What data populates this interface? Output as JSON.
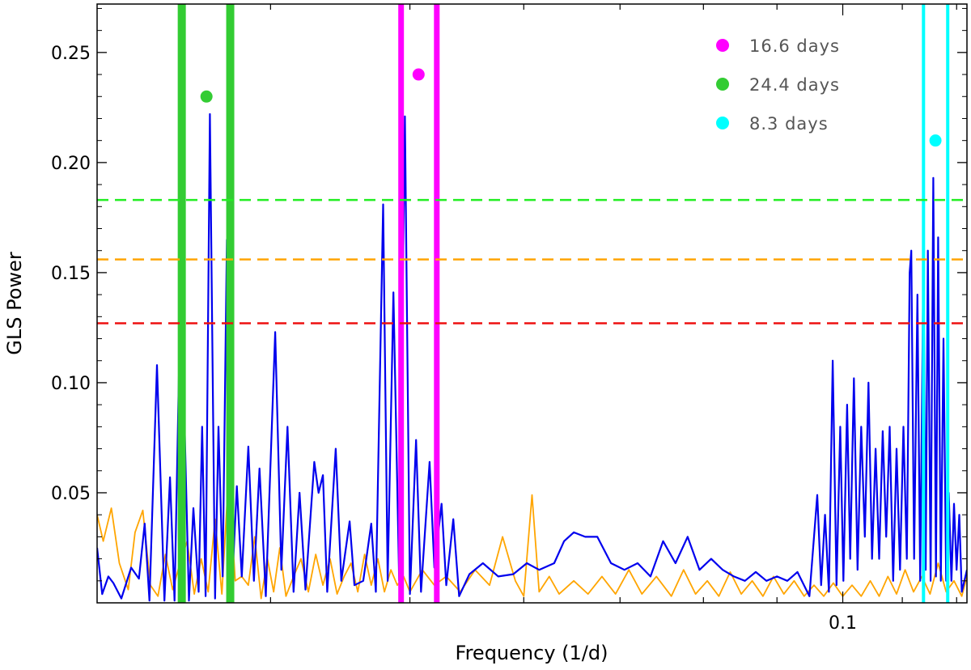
{
  "chart_data": {
    "type": "line",
    "title": "",
    "xlabel": "Frequency (1/d)",
    "ylabel": "GLS Power",
    "x_scale": "log",
    "xlim": [
      0.0303,
      0.122
    ],
    "ylim": [
      0,
      0.272
    ],
    "x_tick_labels": [
      {
        "value": 0.1,
        "label": "0.1"
      }
    ],
    "y_ticks": [
      {
        "value": 0.05,
        "label": "0.05"
      },
      {
        "value": 0.1,
        "label": "0.10"
      },
      {
        "value": 0.15,
        "label": "0.15"
      },
      {
        "value": 0.2,
        "label": "0.20"
      },
      {
        "value": 0.25,
        "label": "0.25"
      }
    ],
    "grid": false,
    "legend_position": "top-right",
    "legend": [
      {
        "label": "16.6 days",
        "color": "#ff00ff"
      },
      {
        "label": "24.4 days",
        "color": "#33cc33"
      },
      {
        "label": "8.3 days",
        "color": "#00ffff"
      }
    ],
    "threshold_lines": [
      {
        "y": 0.183,
        "color": "#22ee22"
      },
      {
        "y": 0.156,
        "color": "#ffa500"
      },
      {
        "y": 0.127,
        "color": "#ee1111"
      }
    ],
    "bands": [
      {
        "x": 0.0347,
        "color": "#33cc33",
        "width": "thick"
      },
      {
        "x": 0.0375,
        "color": "#33cc33",
        "width": "thick"
      },
      {
        "x": 0.0493,
        "color": "#ff00ff",
        "width": "medium"
      },
      {
        "x": 0.0522,
        "color": "#ff00ff",
        "width": "medium"
      },
      {
        "x": 0.1138,
        "color": "#00ffff",
        "width": "thin"
      },
      {
        "x": 0.1183,
        "color": "#00ffff",
        "width": "thin"
      }
    ],
    "period_markers": [
      {
        "x": 0.0361,
        "y": 0.23,
        "color": "#33cc33"
      },
      {
        "x": 0.0507,
        "y": 0.24,
        "color": "#ff00ff"
      },
      {
        "x": 0.116,
        "y": 0.21,
        "color": "#00ffff"
      }
    ],
    "series": [
      {
        "color": "#0000ee",
        "points": [
          [
            0.0303,
            0.025
          ],
          [
            0.03055,
            0.004
          ],
          [
            0.03085,
            0.012
          ],
          [
            0.0311,
            0.009
          ],
          [
            0.0315,
            0.002
          ],
          [
            0.032,
            0.016
          ],
          [
            0.0324,
            0.011
          ],
          [
            0.0327,
            0.036
          ],
          [
            0.03295,
            0.001
          ],
          [
            0.03335,
            0.108
          ],
          [
            0.03375,
            0.001
          ],
          [
            0.03405,
            0.057
          ],
          [
            0.0343,
            0.001
          ],
          [
            0.03465,
            0.149
          ],
          [
            0.0351,
            0.001
          ],
          [
            0.03535,
            0.043
          ],
          [
            0.03565,
            0.005
          ],
          [
            0.03585,
            0.08
          ],
          [
            0.03605,
            0.003
          ],
          [
            0.0363,
            0.222
          ],
          [
            0.0366,
            0.002
          ],
          [
            0.0368,
            0.08
          ],
          [
            0.03705,
            0.012
          ],
          [
            0.0373,
            0.165
          ],
          [
            0.0376,
            0.006
          ],
          [
            0.0379,
            0.053
          ],
          [
            0.0382,
            0.012
          ],
          [
            0.0386,
            0.071
          ],
          [
            0.03895,
            0.01
          ],
          [
            0.0393,
            0.061
          ],
          [
            0.0397,
            0.003
          ],
          [
            0.0403,
            0.123
          ],
          [
            0.0407,
            0.015
          ],
          [
            0.0411,
            0.08
          ],
          [
            0.0415,
            0.005
          ],
          [
            0.0419,
            0.05
          ],
          [
            0.0423,
            0.006
          ],
          [
            0.0429,
            0.064
          ],
          [
            0.0432,
            0.05
          ],
          [
            0.0435,
            0.058
          ],
          [
            0.0438,
            0.005
          ],
          [
            0.0444,
            0.07
          ],
          [
            0.0448,
            0.01
          ],
          [
            0.0454,
            0.037
          ],
          [
            0.04575,
            0.008
          ],
          [
            0.0464,
            0.01
          ],
          [
            0.047,
            0.036
          ],
          [
            0.04735,
            0.005
          ],
          [
            0.0479,
            0.181
          ],
          [
            0.04825,
            0.01
          ],
          [
            0.0487,
            0.141
          ],
          [
            0.04915,
            0.01
          ],
          [
            0.0496,
            0.221
          ],
          [
            0.05,
            0.004
          ],
          [
            0.0505,
            0.074
          ],
          [
            0.0509,
            0.005
          ],
          [
            0.0516,
            0.064
          ],
          [
            0.052,
            0.016
          ],
          [
            0.0526,
            0.045
          ],
          [
            0.053,
            0.008
          ],
          [
            0.0536,
            0.038
          ],
          [
            0.0541,
            0.003
          ],
          [
            0.055,
            0.013
          ],
          [
            0.0562,
            0.018
          ],
          [
            0.0576,
            0.012
          ],
          [
            0.059,
            0.013
          ],
          [
            0.0603,
            0.018
          ],
          [
            0.0615,
            0.015
          ],
          [
            0.063,
            0.018
          ],
          [
            0.064,
            0.028
          ],
          [
            0.065,
            0.032
          ],
          [
            0.0662,
            0.03
          ],
          [
            0.0675,
            0.03
          ],
          [
            0.069,
            0.018
          ],
          [
            0.0705,
            0.015
          ],
          [
            0.072,
            0.018
          ],
          [
            0.0735,
            0.012
          ],
          [
            0.075,
            0.028
          ],
          [
            0.0765,
            0.018
          ],
          [
            0.078,
            0.03
          ],
          [
            0.0795,
            0.015
          ],
          [
            0.081,
            0.02
          ],
          [
            0.0825,
            0.015
          ],
          [
            0.084,
            0.012
          ],
          [
            0.0855,
            0.01
          ],
          [
            0.087,
            0.014
          ],
          [
            0.0885,
            0.01
          ],
          [
            0.09,
            0.012
          ],
          [
            0.0915,
            0.01
          ],
          [
            0.093,
            0.014
          ],
          [
            0.0948,
            0.003
          ],
          [
            0.096,
            0.049
          ],
          [
            0.0966,
            0.008
          ],
          [
            0.0972,
            0.04
          ],
          [
            0.0978,
            0.005
          ],
          [
            0.0984,
            0.11
          ],
          [
            0.099,
            0.008
          ],
          [
            0.0996,
            0.08
          ],
          [
            0.1001,
            0.01
          ],
          [
            0.1007,
            0.09
          ],
          [
            0.1012,
            0.02
          ],
          [
            0.1018,
            0.102
          ],
          [
            0.1024,
            0.015
          ],
          [
            0.103,
            0.08
          ],
          [
            0.1036,
            0.03
          ],
          [
            0.1042,
            0.1
          ],
          [
            0.1048,
            0.02
          ],
          [
            0.1054,
            0.07
          ],
          [
            0.106,
            0.02
          ],
          [
            0.1066,
            0.078
          ],
          [
            0.1072,
            0.03
          ],
          [
            0.1078,
            0.08
          ],
          [
            0.1084,
            0.01
          ],
          [
            0.109,
            0.07
          ],
          [
            0.1096,
            0.015
          ],
          [
            0.1102,
            0.08
          ],
          [
            0.1108,
            0.02
          ],
          [
            0.1113,
            0.15
          ],
          [
            0.1116,
            0.16
          ],
          [
            0.1121,
            0.02
          ],
          [
            0.1127,
            0.14
          ],
          [
            0.1132,
            0.01
          ],
          [
            0.1138,
            0.16
          ],
          [
            0.1142,
            0.015
          ],
          [
            0.1146,
            0.16
          ],
          [
            0.1151,
            0.01
          ],
          [
            0.1156,
            0.193
          ],
          [
            0.1161,
            0.012
          ],
          [
            0.1165,
            0.166
          ],
          [
            0.117,
            0.01
          ],
          [
            0.1175,
            0.12
          ],
          [
            0.118,
            0.01
          ],
          [
            0.1185,
            0.05
          ],
          [
            0.119,
            0.01
          ],
          [
            0.1195,
            0.045
          ],
          [
            0.12,
            0.015
          ],
          [
            0.1205,
            0.04
          ],
          [
            0.121,
            0.005
          ],
          [
            0.1215,
            0.01
          ],
          [
            0.122,
            0.015
          ]
        ]
      },
      {
        "color": "#ffa500",
        "points": [
          [
            0.0303,
            0.04
          ],
          [
            0.0306,
            0.028
          ],
          [
            0.031,
            0.043
          ],
          [
            0.0314,
            0.018
          ],
          [
            0.03185,
            0.006
          ],
          [
            0.0322,
            0.032
          ],
          [
            0.0326,
            0.042
          ],
          [
            0.033,
            0.008
          ],
          [
            0.0334,
            0.003
          ],
          [
            0.0338,
            0.022
          ],
          [
            0.0342,
            0.006
          ],
          [
            0.0346,
            0.018
          ],
          [
            0.035,
            0.028
          ],
          [
            0.0354,
            0.004
          ],
          [
            0.0358,
            0.02
          ],
          [
            0.0362,
            0.005
          ],
          [
            0.0366,
            0.038
          ],
          [
            0.037,
            0.004
          ],
          [
            0.0374,
            0.058
          ],
          [
            0.0378,
            0.01
          ],
          [
            0.0382,
            0.012
          ],
          [
            0.0386,
            0.008
          ],
          [
            0.039,
            0.03
          ],
          [
            0.0394,
            0.002
          ],
          [
            0.0398,
            0.02
          ],
          [
            0.0402,
            0.005
          ],
          [
            0.0406,
            0.025
          ],
          [
            0.041,
            0.003
          ],
          [
            0.0415,
            0.012
          ],
          [
            0.042,
            0.02
          ],
          [
            0.0425,
            0.005
          ],
          [
            0.043,
            0.022
          ],
          [
            0.0435,
            0.008
          ],
          [
            0.044,
            0.02
          ],
          [
            0.0445,
            0.004
          ],
          [
            0.045,
            0.012
          ],
          [
            0.0455,
            0.018
          ],
          [
            0.046,
            0.005
          ],
          [
            0.0465,
            0.022
          ],
          [
            0.047,
            0.008
          ],
          [
            0.0475,
            0.02
          ],
          [
            0.048,
            0.005
          ],
          [
            0.0485,
            0.015
          ],
          [
            0.049,
            0.008
          ],
          [
            0.0495,
            0.012
          ],
          [
            0.05,
            0.005
          ],
          [
            0.051,
            0.015
          ],
          [
            0.052,
            0.008
          ],
          [
            0.053,
            0.012
          ],
          [
            0.0542,
            0.005
          ],
          [
            0.0555,
            0.015
          ],
          [
            0.0568,
            0.008
          ],
          [
            0.058,
            0.03
          ],
          [
            0.0592,
            0.01
          ],
          [
            0.06,
            0.003
          ],
          [
            0.0608,
            0.049
          ],
          [
            0.0615,
            0.005
          ],
          [
            0.0625,
            0.012
          ],
          [
            0.0635,
            0.004
          ],
          [
            0.065,
            0.01
          ],
          [
            0.0665,
            0.004
          ],
          [
            0.068,
            0.012
          ],
          [
            0.0695,
            0.004
          ],
          [
            0.071,
            0.015
          ],
          [
            0.0725,
            0.004
          ],
          [
            0.0742,
            0.012
          ],
          [
            0.076,
            0.003
          ],
          [
            0.0775,
            0.015
          ],
          [
            0.079,
            0.004
          ],
          [
            0.0805,
            0.01
          ],
          [
            0.082,
            0.003
          ],
          [
            0.0835,
            0.014
          ],
          [
            0.085,
            0.004
          ],
          [
            0.0865,
            0.01
          ],
          [
            0.088,
            0.003
          ],
          [
            0.0895,
            0.012
          ],
          [
            0.091,
            0.004
          ],
          [
            0.0925,
            0.01
          ],
          [
            0.094,
            0.003
          ],
          [
            0.0955,
            0.008
          ],
          [
            0.097,
            0.003
          ],
          [
            0.0985,
            0.009
          ],
          [
            0.1,
            0.003
          ],
          [
            0.1015,
            0.008
          ],
          [
            0.103,
            0.003
          ],
          [
            0.1045,
            0.01
          ],
          [
            0.106,
            0.003
          ],
          [
            0.1075,
            0.012
          ],
          [
            0.109,
            0.004
          ],
          [
            0.1105,
            0.015
          ],
          [
            0.112,
            0.005
          ],
          [
            0.1135,
            0.012
          ],
          [
            0.115,
            0.004
          ],
          [
            0.1165,
            0.018
          ],
          [
            0.118,
            0.005
          ],
          [
            0.1195,
            0.01
          ],
          [
            0.121,
            0.003
          ],
          [
            0.122,
            0.012
          ]
        ]
      }
    ]
  }
}
